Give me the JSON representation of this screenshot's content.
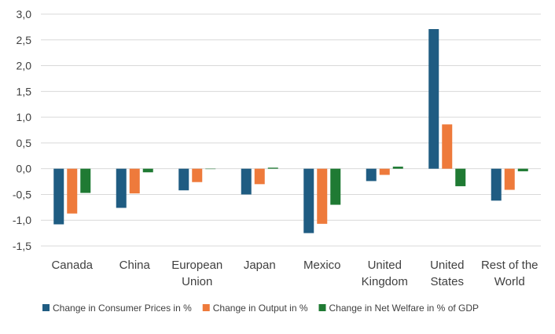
{
  "chart_data": {
    "type": "bar",
    "categories": [
      [
        "Canada"
      ],
      [
        "China"
      ],
      [
        "European",
        "Union"
      ],
      [
        "Japan"
      ],
      [
        "Mexico"
      ],
      [
        "United",
        "Kingdom"
      ],
      [
        "United",
        "States"
      ],
      [
        "Rest of the",
        "World"
      ]
    ],
    "series": [
      {
        "name": "Change in Consumer Prices in %",
        "color": "#1f5c82",
        "values": [
          -1.08,
          -0.76,
          -0.42,
          -0.5,
          -1.25,
          -0.24,
          2.71,
          -0.62
        ]
      },
      {
        "name": "Change in Output in %",
        "color": "#ee7a3b",
        "values": [
          -0.87,
          -0.48,
          -0.26,
          -0.3,
          -1.07,
          -0.12,
          0.86,
          -0.41
        ]
      },
      {
        "name": "Change in Net Welfare in % of GDP",
        "color": "#1f7a33",
        "values": [
          -0.47,
          -0.07,
          0.0,
          0.02,
          -0.7,
          0.04,
          -0.34,
          -0.05
        ]
      }
    ],
    "ylim": [
      -1.5,
      3.0
    ],
    "yticks": [
      "-1,5",
      "-1,0",
      "-0,5",
      "0,0",
      "0,5",
      "1,0",
      "1,5",
      "2,0",
      "2,5",
      "3,0"
    ],
    "ytick_values": [
      -1.5,
      -1.0,
      -0.5,
      0.0,
      0.5,
      1.0,
      1.5,
      2.0,
      2.5,
      3.0
    ],
    "grid": true,
    "legend_position": "bottom"
  }
}
